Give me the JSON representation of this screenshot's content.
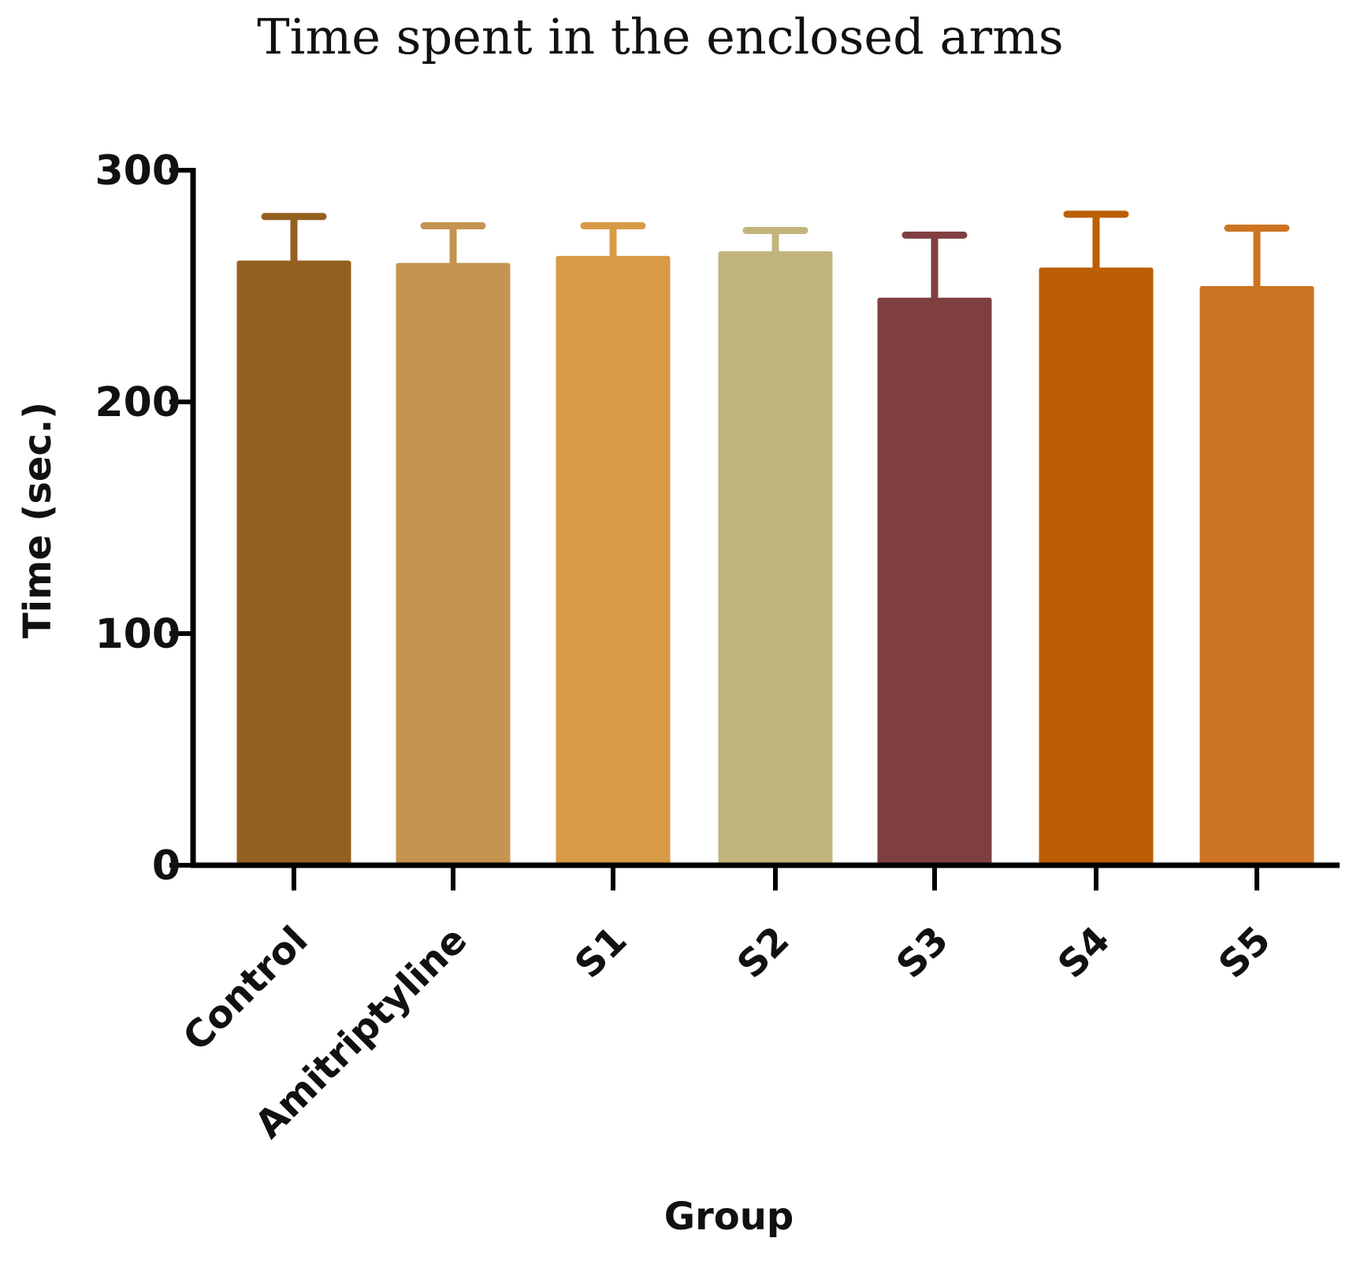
{
  "chart_data": {
    "type": "bar",
    "title": "Time spent in the enclosed arms",
    "xlabel": "Group",
    "ylabel": "Time (sec.)",
    "ylim": [
      0,
      300
    ],
    "yticks": [
      0,
      100,
      200,
      300
    ],
    "categories": [
      "Control",
      "Amitriptyline",
      "S1",
      "S2",
      "S3",
      "S4",
      "S5"
    ],
    "values": [
      261,
      260,
      263,
      265,
      245,
      258,
      250
    ],
    "error": [
      19,
      16,
      13,
      9,
      27,
      23,
      25
    ],
    "colors": [
      "#94601f",
      "#c59450",
      "#d89a45",
      "#c1b47d",
      "#7f3f40",
      "#bb5e04",
      "#cc7422"
    ],
    "grid": false,
    "legend": "none"
  }
}
